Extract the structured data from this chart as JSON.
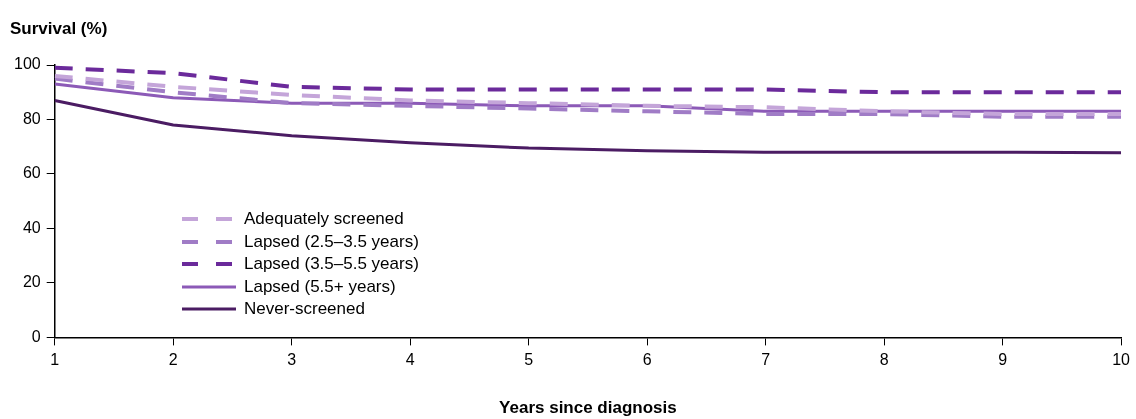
{
  "chart_data": {
    "type": "line",
    "ylabel": "Survival (%)",
    "xlabel": "Years since diagnosis",
    "x": [
      1,
      2,
      3,
      4,
      5,
      6,
      7,
      8,
      9,
      10
    ],
    "series": [
      {
        "name": "Adequately screened",
        "color": "#c4a5d9",
        "line_style": "dashed",
        "values": [
          96,
          92,
          89,
          87,
          86,
          85,
          84.5,
          83,
          82,
          82
        ]
      },
      {
        "name": "Lapsed (2.5–3.5 years)",
        "color": "#a07cc6",
        "line_style": "dashed",
        "values": [
          95,
          90,
          86,
          85,
          84,
          83,
          82,
          82,
          81,
          81
        ]
      },
      {
        "name": "Lapsed (3.5–5.5 years)",
        "color": "#6b2a9b",
        "line_style": "dashed",
        "values": [
          99,
          97,
          92,
          91,
          91,
          91,
          91,
          90,
          90,
          90
        ]
      },
      {
        "name": "Lapsed (5.5+ years)",
        "color": "#8c5ab7",
        "line_style": "solid",
        "values": [
          93,
          88,
          86,
          86,
          85,
          85,
          83,
          83,
          83,
          83
        ]
      },
      {
        "name": "Never-screened",
        "color": "#4b1c63",
        "line_style": "solid",
        "values": [
          87,
          78,
          74,
          71.5,
          69.5,
          68.5,
          68,
          68,
          68,
          67.8
        ]
      }
    ],
    "xlim": [
      1,
      10
    ],
    "xticks": [
      1,
      2,
      3,
      4,
      5,
      6,
      7,
      8,
      9,
      10
    ],
    "ylim": [
      0,
      100
    ],
    "yticks": [
      0,
      20,
      40,
      60,
      80,
      100
    ],
    "grid": false,
    "legend": "bottom left",
    "marker": "none"
  }
}
